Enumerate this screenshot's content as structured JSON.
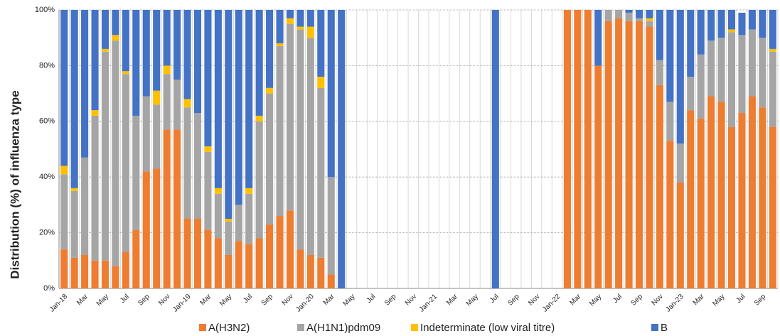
{
  "chart_data": {
    "type": "stacked_bar",
    "y_label": "Distribution (%) of influenza type",
    "categories": [
      "Jan-18",
      null,
      "Mar",
      null,
      "May",
      null,
      "Jul",
      null,
      "Sep",
      null,
      "Nov",
      null,
      "Jan-19",
      null,
      "Mar",
      null,
      "May",
      null,
      "Jul",
      null,
      "Sep",
      null,
      "Nov",
      null,
      "Jan-20",
      null,
      "Mar",
      null,
      "May",
      null,
      "Jul",
      null,
      "Sep",
      null,
      "Nov",
      null,
      "Jan-21",
      null,
      "Mar",
      null,
      "May",
      null,
      "Jul",
      null,
      "Sep",
      null,
      "Nov",
      null,
      "Jan-22",
      null,
      "Mar",
      null,
      "May",
      null,
      "Jul",
      null,
      "Sep",
      null,
      "Nov",
      null,
      "Jan-23",
      null,
      "Mar",
      null,
      "May",
      null,
      "Jul",
      null,
      "Sep",
      null
    ],
    "series": [
      {
        "name": "A(H3N2)",
        "color": "#ed7d31",
        "values": [
          14,
          11,
          12,
          10,
          10,
          8,
          13,
          21,
          42,
          43,
          57,
          57,
          25,
          25,
          21,
          18,
          12,
          17,
          16,
          18,
          23,
          26,
          28,
          14,
          12,
          11,
          5,
          0,
          0,
          0,
          0,
          0,
          0,
          0,
          0,
          0,
          0,
          0,
          0,
          0,
          0,
          0,
          0,
          0,
          0,
          0,
          0,
          0,
          0,
          100,
          100,
          100,
          80,
          96,
          97,
          96,
          96,
          94,
          73,
          53,
          38,
          64,
          61,
          69,
          67,
          58,
          63,
          69,
          65,
          58
        ]
      },
      {
        "name": "A(H1N1)pdm09",
        "color": "#a5a5a5",
        "values": [
          27,
          24,
          35,
          52,
          75,
          81,
          64,
          41,
          27,
          23,
          20,
          18,
          40,
          38,
          28,
          16,
          12,
          13,
          18,
          42,
          47,
          61,
          67,
          79,
          78,
          61,
          35,
          0,
          0,
          0,
          0,
          0,
          0,
          0,
          0,
          0,
          0,
          0,
          0,
          0,
          0,
          0,
          0,
          0,
          0,
          0,
          0,
          0,
          0,
          0,
          0,
          0,
          0,
          4,
          3,
          3,
          1,
          2,
          9,
          14,
          14,
          12,
          23,
          20,
          23,
          34,
          28,
          24,
          25,
          27
        ]
      },
      {
        "name": "Indeterminate (low viral titre)",
        "color": "#ffc000",
        "values": [
          3,
          1,
          0,
          2,
          1,
          2,
          1,
          0,
          0,
          5,
          3,
          0,
          3,
          0,
          2,
          2,
          1,
          0,
          2,
          2,
          2,
          1,
          2,
          1,
          4,
          4,
          0,
          0,
          0,
          0,
          0,
          0,
          0,
          0,
          0,
          0,
          0,
          0,
          0,
          0,
          0,
          0,
          0,
          0,
          0,
          0,
          0,
          0,
          0,
          0,
          0,
          0,
          0,
          0,
          0,
          0,
          0,
          1,
          0,
          0,
          0,
          0,
          0,
          0,
          0,
          1,
          0,
          0,
          0,
          1
        ]
      },
      {
        "name": "B",
        "color": "#4472c4",
        "values": [
          56,
          64,
          53,
          36,
          14,
          9,
          22,
          38,
          31,
          29,
          20,
          25,
          32,
          37,
          49,
          64,
          75,
          70,
          64,
          38,
          28,
          12,
          3,
          6,
          6,
          24,
          60,
          100,
          0,
          0,
          0,
          0,
          0,
          0,
          0,
          0,
          0,
          0,
          0,
          0,
          0,
          0,
          100,
          0,
          0,
          0,
          0,
          0,
          0,
          0,
          0,
          0,
          20,
          0,
          0,
          1,
          3,
          3,
          18,
          33,
          48,
          24,
          16,
          11,
          10,
          7,
          8,
          7,
          10,
          14
        ]
      }
    ],
    "ylim": [
      0,
      100
    ],
    "yticks": [
      {
        "value": 0,
        "label": "0%"
      },
      {
        "value": 20,
        "label": "20%"
      },
      {
        "value": 40,
        "label": "40%"
      },
      {
        "value": 60,
        "label": "60%"
      },
      {
        "value": 80,
        "label": "80%"
      },
      {
        "value": 100,
        "label": "100%"
      }
    ],
    "grid": true,
    "legend": "bottom"
  }
}
